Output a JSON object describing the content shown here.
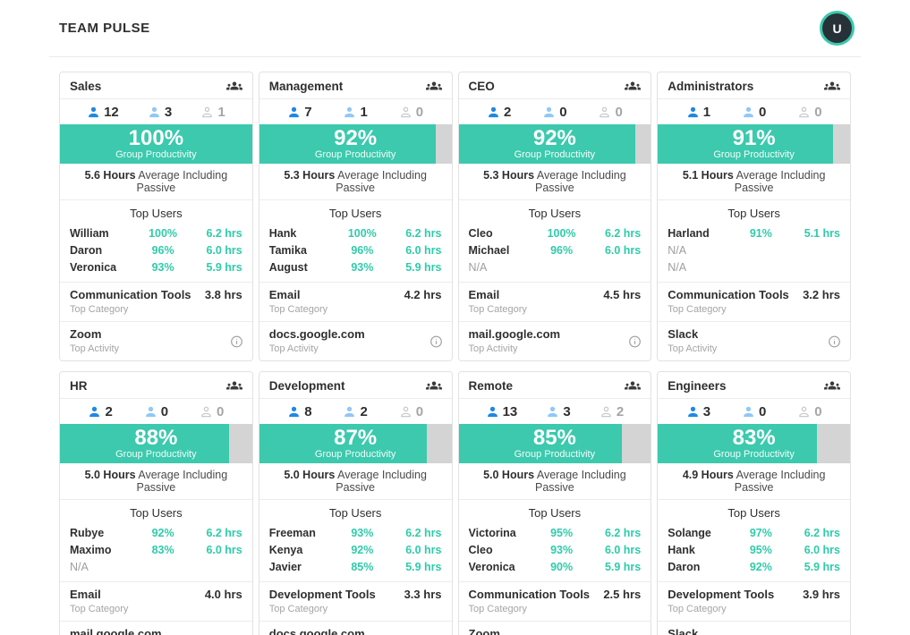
{
  "header": {
    "title": "TEAM PULSE",
    "avatar_initial": "U"
  },
  "labels": {
    "group_productivity": "Group Productivity",
    "avg_suffix": "Average Including Passive",
    "top_users": "Top Users",
    "top_category": "Top Category",
    "top_activity": "Top Activity"
  },
  "colors": {
    "accent_teal": "#3cc9ad",
    "bar_track": "#d4d4d4",
    "member_active_blue": "#1e88e5",
    "member_passive_blue": "#90c8f7",
    "member_offline_gray": "#c9c9c9"
  },
  "teams": [
    {
      "name": "Sales",
      "active": 12,
      "passive": 3,
      "offline": 1,
      "productivity": "100%",
      "productivity_pct": 100,
      "avg_hours": "5.6 Hours",
      "top_users": [
        {
          "name": "William",
          "score": "100%",
          "hours": "6.2 hrs"
        },
        {
          "name": "Daron",
          "score": "96%",
          "hours": "6.0 hrs"
        },
        {
          "name": "Veronica",
          "score": "93%",
          "hours": "5.9 hrs"
        }
      ],
      "top_category": {
        "name": "Communication Tools",
        "hours": "3.8 hrs"
      },
      "top_activity": "Zoom"
    },
    {
      "name": "Management",
      "active": 7,
      "passive": 1,
      "offline": 0,
      "productivity": "92%",
      "productivity_pct": 92,
      "avg_hours": "5.3 Hours",
      "top_users": [
        {
          "name": "Hank",
          "score": "100%",
          "hours": "6.2 hrs"
        },
        {
          "name": "Tamika",
          "score": "96%",
          "hours": "6.0 hrs"
        },
        {
          "name": "August",
          "score": "93%",
          "hours": "5.9 hrs"
        }
      ],
      "top_category": {
        "name": "Email",
        "hours": "4.2 hrs"
      },
      "top_activity": "docs.google.com"
    },
    {
      "name": "CEO",
      "active": 2,
      "passive": 0,
      "offline": 0,
      "productivity": "92%",
      "productivity_pct": 92,
      "avg_hours": "5.3 Hours",
      "top_users": [
        {
          "name": "Cleo",
          "score": "100%",
          "hours": "6.2 hrs"
        },
        {
          "name": "Michael",
          "score": "96%",
          "hours": "6.0 hrs"
        },
        {
          "name": "N/A",
          "score": "",
          "hours": ""
        }
      ],
      "top_category": {
        "name": "Email",
        "hours": "4.5 hrs"
      },
      "top_activity": "mail.google.com"
    },
    {
      "name": "Administrators",
      "active": 1,
      "passive": 0,
      "offline": 0,
      "productivity": "91%",
      "productivity_pct": 91,
      "avg_hours": "5.1 Hours",
      "top_users": [
        {
          "name": "Harland",
          "score": "91%",
          "hours": "5.1 hrs"
        },
        {
          "name": "N/A",
          "score": "",
          "hours": ""
        },
        {
          "name": "N/A",
          "score": "",
          "hours": ""
        }
      ],
      "top_category": {
        "name": "Communication Tools",
        "hours": "3.2 hrs"
      },
      "top_activity": "Slack"
    },
    {
      "name": "HR",
      "active": 2,
      "passive": 0,
      "offline": 0,
      "productivity": "88%",
      "productivity_pct": 88,
      "avg_hours": "5.0 Hours",
      "top_users": [
        {
          "name": "Rubye",
          "score": "92%",
          "hours": "6.2 hrs"
        },
        {
          "name": "Maximo",
          "score": "83%",
          "hours": "6.0 hrs"
        },
        {
          "name": "N/A",
          "score": "",
          "hours": ""
        }
      ],
      "top_category": {
        "name": "Email",
        "hours": "4.0 hrs"
      },
      "top_activity": "mail.google.com"
    },
    {
      "name": "Development",
      "active": 8,
      "passive": 2,
      "offline": 0,
      "productivity": "87%",
      "productivity_pct": 87,
      "avg_hours": "5.0 Hours",
      "top_users": [
        {
          "name": "Freeman",
          "score": "93%",
          "hours": "6.2 hrs"
        },
        {
          "name": "Kenya",
          "score": "92%",
          "hours": "6.0 hrs"
        },
        {
          "name": "Javier",
          "score": "85%",
          "hours": "5.9 hrs"
        }
      ],
      "top_category": {
        "name": "Development Tools",
        "hours": "3.3 hrs"
      },
      "top_activity": "docs.google.com"
    },
    {
      "name": "Remote",
      "active": 13,
      "passive": 3,
      "offline": 2,
      "productivity": "85%",
      "productivity_pct": 85,
      "avg_hours": "5.0 Hours",
      "top_users": [
        {
          "name": "Victorina",
          "score": "95%",
          "hours": "6.2 hrs"
        },
        {
          "name": "Cleo",
          "score": "93%",
          "hours": "6.0 hrs"
        },
        {
          "name": "Veronica",
          "score": "90%",
          "hours": "5.9 hrs"
        }
      ],
      "top_category": {
        "name": "Communication Tools",
        "hours": "2.5 hrs"
      },
      "top_activity": "Zoom"
    },
    {
      "name": "Engineers",
      "active": 3,
      "passive": 0,
      "offline": 0,
      "productivity": "83%",
      "productivity_pct": 83,
      "avg_hours": "4.9 Hours",
      "top_users": [
        {
          "name": "Solange",
          "score": "97%",
          "hours": "6.2 hrs"
        },
        {
          "name": "Hank",
          "score": "95%",
          "hours": "6.0 hrs"
        },
        {
          "name": "Daron",
          "score": "92%",
          "hours": "5.9 hrs"
        }
      ],
      "top_category": {
        "name": "Development Tools",
        "hours": "3.9 hrs"
      },
      "top_activity": "Slack"
    }
  ]
}
